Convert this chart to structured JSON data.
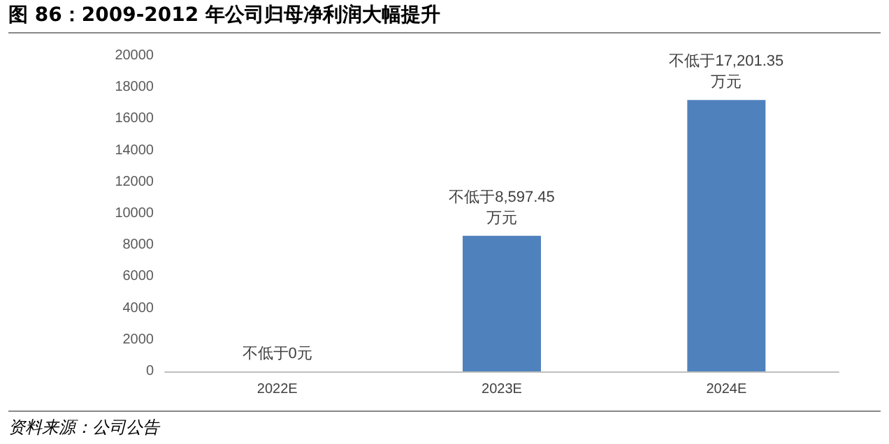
{
  "chart_data": {
    "type": "bar",
    "title": "图 86：2009-2012 年公司归母净利润大幅提升",
    "categories": [
      "2022E",
      "2023E",
      "2024E"
    ],
    "values": [
      0,
      8597.45,
      17201.35
    ],
    "value_labels": [
      "不低于0元",
      "不低于8,597.45\n万元",
      "不低于17,201.35\n万元"
    ],
    "color": "#4f81bd",
    "ylim": [
      0,
      20000
    ],
    "yticks": [
      0,
      2000,
      4000,
      6000,
      8000,
      10000,
      12000,
      14000,
      16000,
      18000,
      20000
    ],
    "grid": false,
    "annotations": [
      "资料来源：公司公告"
    ]
  }
}
